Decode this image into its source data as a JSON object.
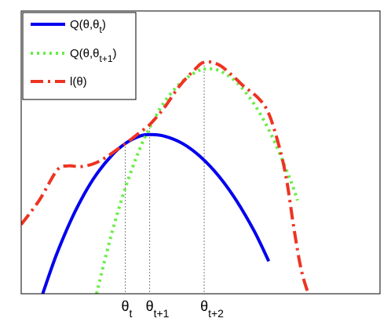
{
  "chart_data": {
    "type": "line",
    "title": "",
    "xlabel": "",
    "ylabel": "",
    "xlim": [
      0,
      1
    ],
    "ylim": [
      0,
      1
    ],
    "grid": false,
    "legend_placement": "top-left",
    "y_ticks_shown": false,
    "x_tick_labels": [
      {
        "x": 0.29,
        "base": "θ",
        "sub": "t"
      },
      {
        "x": 0.358,
        "base": "θ",
        "sub": "t+1"
      },
      {
        "x": 0.51,
        "base": "θ",
        "sub": "t+2"
      }
    ],
    "reference_lines": [
      {
        "x": 0.29,
        "style": "dotted",
        "color": "#555555"
      },
      {
        "x": 0.358,
        "style": "dotted",
        "color": "#555555"
      },
      {
        "x": 0.51,
        "style": "dotted",
        "color": "#555555"
      }
    ],
    "series": [
      {
        "legend_base": "Q(θ,θ",
        "legend_sub": "t",
        "legend_tail": ")",
        "color": "#0000ee",
        "style": "solid",
        "x": [
          0.06,
          0.1,
          0.15,
          0.2,
          0.25,
          0.29,
          0.33,
          0.358,
          0.4,
          0.45,
          0.5,
          0.55,
          0.6,
          0.65,
          0.69
        ],
        "y": [
          0.0,
          0.144,
          0.29,
          0.404,
          0.486,
          0.531,
          0.557,
          0.563,
          0.557,
          0.531,
          0.484,
          0.417,
          0.329,
          0.22,
          0.115
        ]
      },
      {
        "legend_base": "Q(θ,θ",
        "legend_sub": "t+1",
        "legend_tail": ")",
        "color": "#66ee44",
        "style": "dotted",
        "x": [
          0.21,
          0.25,
          0.29,
          0.33,
          0.358,
          0.4,
          0.45,
          0.5,
          0.51,
          0.55,
          0.6,
          0.65,
          0.7,
          0.75,
          0.77
        ],
        "y": [
          0.0,
          0.203,
          0.373,
          0.511,
          0.587,
          0.68,
          0.752,
          0.793,
          0.795,
          0.79,
          0.748,
          0.669,
          0.554,
          0.403,
          0.33
        ]
      },
      {
        "legend_base": "l(θ)",
        "legend_sub": "",
        "legend_tail": "",
        "color": "#ee3322",
        "style": "dashdot",
        "x": [
          0.0,
          0.05,
          0.1,
          0.13,
          0.17,
          0.22,
          0.29,
          0.33,
          0.358,
          0.4,
          0.44,
          0.48,
          0.51,
          0.55,
          0.59,
          0.62,
          0.66,
          0.69,
          0.72,
          0.74,
          0.76,
          0.78,
          0.8
        ],
        "y": [
          0.245,
          0.33,
          0.437,
          0.452,
          0.45,
          0.47,
          0.531,
          0.57,
          0.598,
          0.66,
          0.733,
          0.788,
          0.819,
          0.81,
          0.77,
          0.734,
          0.693,
          0.637,
          0.516,
          0.4,
          0.232,
          0.087,
          0.0
        ]
      }
    ]
  }
}
